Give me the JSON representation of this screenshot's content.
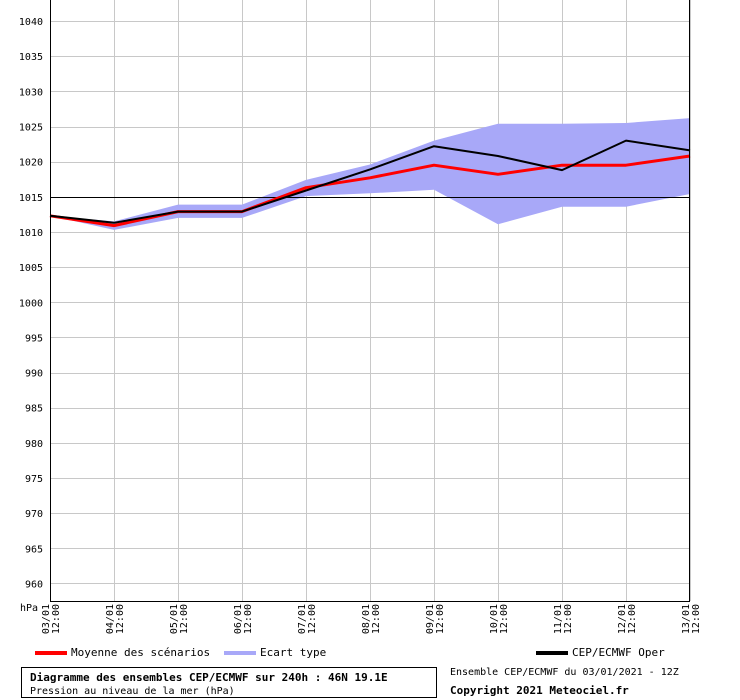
{
  "chart_data": {
    "type": "line",
    "title": "Diagramme des ensembles CEP/ECMWF sur 240h : 46N 19.1E",
    "ylabel": "Pression au niveau de la mer (hPa)",
    "yunit": "hPa",
    "ylim": [
      957.5,
      1043
    ],
    "yticks": [
      960,
      965,
      970,
      975,
      980,
      985,
      990,
      995,
      1000,
      1005,
      1010,
      1015,
      1020,
      1025,
      1030,
      1035,
      1040
    ],
    "reference_line": 1015,
    "x": [
      {
        "date": "03/01",
        "time": "12:00"
      },
      {
        "date": "04/01",
        "time": "12:00"
      },
      {
        "date": "05/01",
        "time": "12:00"
      },
      {
        "date": "06/01",
        "time": "12:00"
      },
      {
        "date": "07/01",
        "time": "12:00"
      },
      {
        "date": "08/01",
        "time": "12:00"
      },
      {
        "date": "09/01",
        "time": "12:00"
      },
      {
        "date": "10/01",
        "time": "12:00"
      },
      {
        "date": "11/01",
        "time": "12:00"
      },
      {
        "date": "12/01",
        "time": "12:00"
      },
      {
        "date": "13/01",
        "time": "12:00"
      }
    ],
    "band": {
      "name": "Ecart type",
      "color": "#a8a8f8",
      "upper": [
        1012.3,
        1011.5,
        1013.9,
        1013.9,
        1017.4,
        1019.6,
        1023.0,
        1025.4,
        1025.4,
        1025.5,
        1026.2
      ],
      "lower": [
        1012.3,
        1010.3,
        1012.0,
        1012.0,
        1015.1,
        1015.5,
        1016.0,
        1011.1,
        1013.6,
        1013.6,
        1015.4
      ]
    },
    "series": [
      {
        "name": "Moyenne des scénarios",
        "color": "#ff0000",
        "width": 3,
        "values": [
          1012.3,
          1010.9,
          1012.9,
          1012.9,
          1016.3,
          1017.7,
          1019.5,
          1018.2,
          1019.5,
          1019.5,
          1020.8
        ]
      },
      {
        "name": "CEP/ECMWF Oper",
        "color": "#000000",
        "width": 2,
        "values": [
          1012.3,
          1011.3,
          1012.9,
          1012.9,
          1015.9,
          1018.9,
          1022.2,
          1020.8,
          1018.8,
          1023.0,
          1021.6
        ]
      }
    ]
  },
  "legend": {
    "mean_label": "Moyenne des scénarios",
    "band_label": "Ecart type",
    "oper_label": "CEP/ECMWF Oper"
  },
  "info": {
    "title": "Diagramme des ensembles CEP/ECMWF sur 240h : 46N 19.1E",
    "subtitle": "Pression au niveau de la mer (hPa)"
  },
  "credits": {
    "run": "Ensemble CEP/ECMWF du 03/01/2021 - 12Z",
    "copyright": "Copyright 2021 Meteociel.fr"
  }
}
